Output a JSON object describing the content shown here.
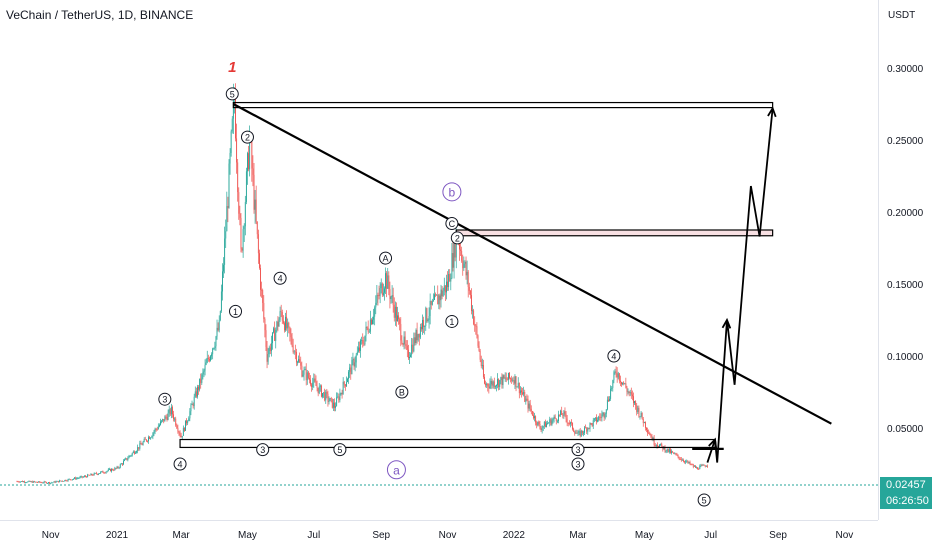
{
  "header": {
    "title": "VeChain / TetherUS, 1D, BINANCE",
    "unit": "USDT"
  },
  "price_tag": {
    "price": "0.02457",
    "countdown": "06:26:50",
    "color": "#26a69a"
  },
  "colors": {
    "up": "#26a69a",
    "down": "#ef5350",
    "line": "#000000",
    "wave_mark": "#e53935",
    "zone_fill": "#f8e0e3"
  },
  "chart_data": {
    "type": "candlestick",
    "title": "VeChain / TetherUS, 1D, BINANCE",
    "ylabel": "USDT",
    "ylim": [
      0,
      0.33
    ],
    "y_ticks": [
      "0.30000",
      "0.25000",
      "0.20000",
      "0.15000",
      "0.10000",
      "0.05000"
    ],
    "y_tick_values": [
      0.3,
      0.25,
      0.2,
      0.15,
      0.1,
      0.05
    ],
    "x_ticks": [
      "Nov",
      "2021",
      "Mar",
      "May",
      "Jul",
      "Sep",
      "Nov",
      "2022",
      "Mar",
      "May",
      "Jul",
      "Sep",
      "Nov"
    ],
    "x_tick_dates": [
      "2020-11-01",
      "2021-01-01",
      "2021-03-01",
      "2021-05-01",
      "2021-07-01",
      "2021-09-01",
      "2021-11-01",
      "2022-01-01",
      "2022-03-01",
      "2022-05-01",
      "2022-07-01",
      "2022-09-01",
      "2022-11-01"
    ],
    "last_price": 0.02457,
    "price_path": [
      [
        "2020-10-01",
        0.013
      ],
      [
        "2020-11-01",
        0.012
      ],
      [
        "2020-12-01",
        0.016
      ],
      [
        "2021-01-01",
        0.022
      ],
      [
        "2021-02-01",
        0.045
      ],
      [
        "2021-02-20",
        0.062
      ],
      [
        "2021-03-01",
        0.044
      ],
      [
        "2021-03-20",
        0.085
      ],
      [
        "2021-04-05",
        0.12
      ],
      [
        "2021-04-19",
        0.28
      ],
      [
        "2021-04-25",
        0.17
      ],
      [
        "2021-05-03",
        0.25
      ],
      [
        "2021-05-12",
        0.16
      ],
      [
        "2021-05-19",
        0.1
      ],
      [
        "2021-06-01",
        0.13
      ],
      [
        "2021-06-20",
        0.09
      ],
      [
        "2021-07-20",
        0.065
      ],
      [
        "2021-08-15",
        0.11
      ],
      [
        "2021-09-05",
        0.155
      ],
      [
        "2021-09-25",
        0.1
      ],
      [
        "2021-10-10",
        0.125
      ],
      [
        "2021-11-01",
        0.15
      ],
      [
        "2021-11-10",
        0.185
      ],
      [
        "2021-11-20",
        0.15
      ],
      [
        "2021-12-05",
        0.08
      ],
      [
        "2022-01-01",
        0.085
      ],
      [
        "2022-01-25",
        0.05
      ],
      [
        "2022-02-15",
        0.06
      ],
      [
        "2022-03-01",
        0.045
      ],
      [
        "2022-03-25",
        0.06
      ],
      [
        "2022-04-05",
        0.09
      ],
      [
        "2022-04-20",
        0.07
      ],
      [
        "2022-05-10",
        0.04
      ],
      [
        "2022-06-01",
        0.03
      ],
      [
        "2022-06-18",
        0.022
      ],
      [
        "2022-06-28",
        0.0246
      ]
    ],
    "wave_labels": [
      {
        "label": "1",
        "date": "2021-04-17",
        "price": 0.3,
        "style": "red"
      },
      {
        "label": "5",
        "date": "2021-04-17",
        "price": 0.282,
        "style": "circle"
      },
      {
        "label": "2",
        "date": "2021-05-01",
        "price": 0.252,
        "style": "circle"
      },
      {
        "label": "1",
        "date": "2021-04-20",
        "price": 0.131,
        "style": "circle"
      },
      {
        "label": "3",
        "date": "2021-02-14",
        "price": 0.07,
        "style": "circle"
      },
      {
        "label": "4",
        "date": "2021-02-28",
        "price": 0.025,
        "style": "circle"
      },
      {
        "label": "4",
        "date": "2021-05-31",
        "price": 0.154,
        "style": "circle"
      },
      {
        "label": "3",
        "date": "2021-05-15",
        "price": 0.035,
        "style": "circle"
      },
      {
        "label": "5",
        "date": "2021-07-25",
        "price": 0.035,
        "style": "circle"
      },
      {
        "label": "A",
        "date": "2021-09-05",
        "price": 0.168,
        "style": "circle"
      },
      {
        "label": "B",
        "date": "2021-09-20",
        "price": 0.075,
        "style": "circle"
      },
      {
        "label": "b",
        "date": "2021-11-05",
        "price": 0.214,
        "style": "circle-large"
      },
      {
        "label": "C",
        "date": "2021-11-05",
        "price": 0.192,
        "style": "circle"
      },
      {
        "label": "2",
        "date": "2021-11-10",
        "price": 0.182,
        "style": "circle"
      },
      {
        "label": "1",
        "date": "2021-11-05",
        "price": 0.124,
        "style": "circle"
      },
      {
        "label": "4",
        "date": "2022-04-03",
        "price": 0.1,
        "style": "circle"
      },
      {
        "label": "3",
        "date": "2022-03-01",
        "price": 0.035,
        "style": "circle"
      },
      {
        "label": "3",
        "date": "2022-03-01",
        "price": 0.025,
        "style": "circle"
      },
      {
        "label": "5",
        "date": "2022-06-25",
        "price": 0.0,
        "style": "circle"
      },
      {
        "label": "a",
        "date": "2021-09-15",
        "price": 0.021,
        "style": "circle-large"
      }
    ],
    "trendline": [
      [
        "2021-04-18",
        0.275
      ],
      [
        "2022-10-20",
        0.053
      ]
    ],
    "zones": [
      {
        "from": "2021-04-18",
        "to": "2022-08-27",
        "low": 0.2725,
        "high": 0.276
      },
      {
        "from": "2021-11-09",
        "to": "2022-08-27",
        "low": 0.1835,
        "high": 0.1875
      },
      {
        "from": "2021-02-28",
        "to": "2022-07-05",
        "low": 0.0365,
        "high": 0.042
      }
    ],
    "projection": [
      [
        "2022-06-28",
        0.026
      ],
      [
        "2022-07-05",
        0.042
      ],
      [
        "2022-07-07",
        0.026
      ],
      [
        "2022-07-16",
        0.125
      ],
      [
        "2022-07-23",
        0.08
      ],
      [
        "2022-08-07",
        0.218
      ],
      [
        "2022-08-15",
        0.183
      ],
      [
        "2022-08-27",
        0.272
      ]
    ]
  }
}
